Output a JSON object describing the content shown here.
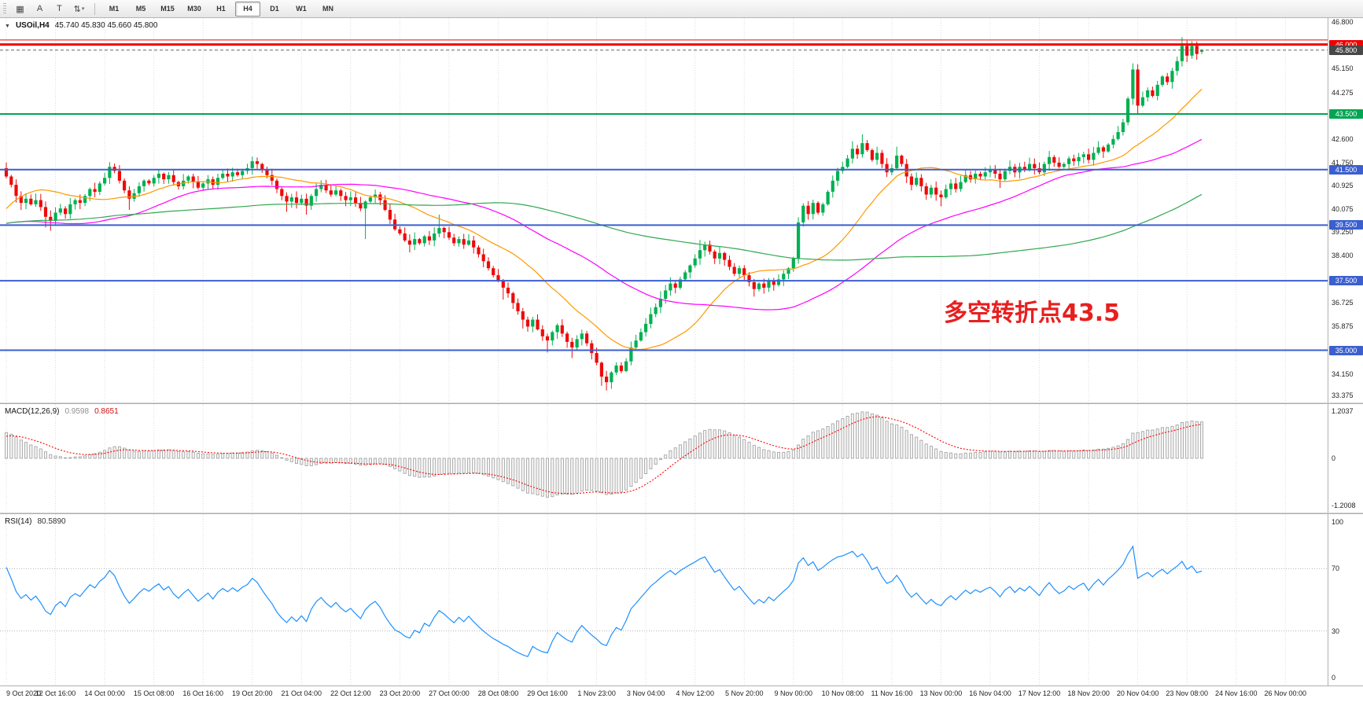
{
  "toolbar": {
    "tools": [
      {
        "name": "chart-grid-icon",
        "glyph": "▦"
      },
      {
        "name": "cursor-tool-icon",
        "glyph": "A"
      },
      {
        "name": "text-tool-icon",
        "glyph": "T"
      },
      {
        "name": "arrange-tool-icon",
        "glyph": "⇅",
        "caret": true
      }
    ],
    "timeframes": [
      "M1",
      "M5",
      "M15",
      "M30",
      "H1",
      "H4",
      "D1",
      "W1",
      "MN"
    ],
    "active_timeframe": "H4"
  },
  "main": {
    "collapse_icon": "▼",
    "title": "USOil,H4",
    "ohlc": "45.740 45.830 45.660 45.800",
    "annotation": {
      "text": "多空转折点43.5",
      "color": "#e81f1f"
    }
  },
  "macd": {
    "label": "MACD(12,26,9)",
    "value": "0.9598",
    "signal_value": "0.8651",
    "axis": [
      "1.2037",
      "0",
      "-1.2008"
    ],
    "params": {
      "fast": 12,
      "slow": 26,
      "signal": 9
    }
  },
  "rsi": {
    "label": "RSI(14)",
    "value": "80.5890",
    "period": 14,
    "levels": [
      70,
      30
    ],
    "axis": [
      "100",
      "70",
      "30",
      "0"
    ]
  },
  "price_axis": {
    "ticks": [
      46.8,
      45.15,
      44.275,
      42.6,
      41.75,
      40.925,
      40.075,
      39.25,
      38.4,
      36.725,
      35.875,
      34.15,
      33.375
    ]
  },
  "time_axis": {
    "labels": [
      "9 Oct 2020",
      "12 Oct 16:00",
      "14 Oct 00:00",
      "15 Oct 08:00",
      "16 Oct 16:00",
      "19 Oct 20:00",
      "21 Oct 04:00",
      "22 Oct 12:00",
      "23 Oct 20:00",
      "27 Oct 00:00",
      "28 Oct 08:00",
      "29 Oct 16:00",
      "1 Nov 23:00",
      "3 Nov 04:00",
      "4 Nov 12:00",
      "5 Nov 20:00",
      "9 Nov 00:00",
      "10 Nov 08:00",
      "11 Nov 16:00",
      "13 Nov 00:00",
      "16 Nov 04:00",
      "17 Nov 12:00",
      "18 Nov 20:00",
      "20 Nov 04:00",
      "23 Nov 08:00",
      "24 Nov 16:00",
      "26 Nov 00:00"
    ]
  },
  "colors": {
    "bull": "#00b050",
    "bear": "#ee0a0a",
    "ma_fast": "#ff9800",
    "ma_mid": "#ff00ff",
    "ma_slow": "#31a74f",
    "macd_hist_fill": "#f4f4f4",
    "macd_hist_stroke": "#9c9c9c",
    "macd_signal": "#ff0000",
    "rsi": "#1e90ff",
    "grid": "#dcdcdc",
    "bid_line": "#666666"
  },
  "chart_data": {
    "type": "candlestick",
    "symbol": "USOil",
    "timeframe": "H4",
    "last_ohlc": {
      "open": 45.74,
      "high": 45.83,
      "low": 45.66,
      "close": 45.8
    },
    "price_range": [
      33.12,
      46.95
    ],
    "grid_step_bars": 10,
    "first_open": 41.55,
    "pre_closes": [
      40.5,
      40.6,
      40.7,
      40.6,
      40.5,
      40.4,
      40.6,
      40.7,
      40.5,
      40.4,
      40.2,
      40.0,
      39.8,
      39.6,
      39.4,
      39.2,
      39.4,
      39.6,
      39.3,
      39.0,
      38.6,
      38.2,
      37.8,
      37.5,
      37.2,
      37.0,
      37.2,
      37.4,
      37.1,
      36.9,
      37.2,
      37.6,
      38.0,
      38.4,
      38.8,
      39.2,
      39.6,
      40.0,
      40.3,
      40.6,
      40.9,
      41.1,
      41.0,
      40.9,
      41.0,
      41.1,
      41.2,
      41.3,
      41.2,
      41.3
    ],
    "closes": [
      41.25,
      40.95,
      40.55,
      40.3,
      40.45,
      40.25,
      40.4,
      40.15,
      39.8,
      39.65,
      39.95,
      40.1,
      39.9,
      40.25,
      40.4,
      40.3,
      40.55,
      40.8,
      40.7,
      41.0,
      41.2,
      41.6,
      41.45,
      41.1,
      40.75,
      40.45,
      40.65,
      40.9,
      41.1,
      41.0,
      41.2,
      41.35,
      41.15,
      41.3,
      41.05,
      40.9,
      41.1,
      41.25,
      41.05,
      40.85,
      41.0,
      41.15,
      40.95,
      41.2,
      41.35,
      41.25,
      41.4,
      41.3,
      41.45,
      41.55,
      41.8,
      41.7,
      41.5,
      41.3,
      41.1,
      40.8,
      40.55,
      40.35,
      40.5,
      40.3,
      40.45,
      40.2,
      40.55,
      40.8,
      40.95,
      40.75,
      40.6,
      40.75,
      40.55,
      40.4,
      40.5,
      40.3,
      40.1,
      40.35,
      40.5,
      40.6,
      40.4,
      40.05,
      39.7,
      39.35,
      39.2,
      38.95,
      38.8,
      39.0,
      38.85,
      39.1,
      38.95,
      39.2,
      39.4,
      39.25,
      39.05,
      38.85,
      39.0,
      38.8,
      38.95,
      38.7,
      38.45,
      38.2,
      37.95,
      37.7,
      37.5,
      37.25,
      37.05,
      36.7,
      36.4,
      36.1,
      35.85,
      36.1,
      35.75,
      35.5,
      35.35,
      35.65,
      35.9,
      35.6,
      35.3,
      35.1,
      35.4,
      35.6,
      35.25,
      34.9,
      34.55,
      34.05,
      33.85,
      34.2,
      34.45,
      34.25,
      34.6,
      35.1,
      35.35,
      35.65,
      35.95,
      36.3,
      36.55,
      36.85,
      37.15,
      37.4,
      37.25,
      37.55,
      37.8,
      38.05,
      38.3,
      38.6,
      38.8,
      38.55,
      38.3,
      38.5,
      38.25,
      38.0,
      37.75,
      37.95,
      37.7,
      37.45,
      37.2,
      37.4,
      37.25,
      37.5,
      37.35,
      37.55,
      37.75,
      37.95,
      38.3,
      39.6,
      40.2,
      39.9,
      40.3,
      39.95,
      40.25,
      40.7,
      41.1,
      41.45,
      41.6,
      41.9,
      42.25,
      42.05,
      42.45,
      42.2,
      41.85,
      42.1,
      41.7,
      41.4,
      41.55,
      42.0,
      41.7,
      41.25,
      40.95,
      41.2,
      40.9,
      40.6,
      40.85,
      40.6,
      40.5,
      40.8,
      41.0,
      40.8,
      41.05,
      41.3,
      41.15,
      41.35,
      41.25,
      41.4,
      41.5,
      41.35,
      41.15,
      41.45,
      41.6,
      41.4,
      41.6,
      41.5,
      41.7,
      41.55,
      41.4,
      41.7,
      41.95,
      41.75,
      41.6,
      41.7,
      41.9,
      41.8,
      41.95,
      42.05,
      41.85,
      42.1,
      42.3,
      42.15,
      42.4,
      42.6,
      42.85,
      43.2,
      44.05,
      45.1,
      43.8,
      44.1,
      44.35,
      44.15,
      44.55,
      44.85,
      44.65,
      45.05,
      45.4,
      45.95,
      45.6,
      45.95,
      45.66,
      45.8
    ],
    "overrides": {
      "3": {
        "low": 40.05
      },
      "8": {
        "low": 39.42
      },
      "9": {
        "low": 39.3
      },
      "21": {
        "high": 41.77
      },
      "25": {
        "low": 40.05
      },
      "50": {
        "high": 41.97
      },
      "57": {
        "low": 39.98
      },
      "61": {
        "low": 39.88
      },
      "73": {
        "low": 39.0
      },
      "82": {
        "low": 38.52
      },
      "88": {
        "high": 39.88
      },
      "101": {
        "low": 36.82
      },
      "105": {
        "low": 35.78
      },
      "110": {
        "low": 34.92
      },
      "115": {
        "low": 34.72
      },
      "121": {
        "low": 33.72
      },
      "122": {
        "low": 33.55
      },
      "133": {
        "high": 37.12
      },
      "141": {
        "high": 38.97
      },
      "152": {
        "low": 36.93
      },
      "172": {
        "high": 42.52
      },
      "174": {
        "high": 42.77
      },
      "181": {
        "high": 42.32
      },
      "190": {
        "low": 40.18
      },
      "202": {
        "low": 40.84
      },
      "212": {
        "high": 42.17
      },
      "222": {
        "high": 42.52
      },
      "229": {
        "high": 45.32
      },
      "230": {
        "low": 43.53
      },
      "239": {
        "high": 46.26
      },
      "241": {
        "high": 46.12
      },
      "243": {
        "open": 45.74,
        "high": 45.83,
        "low": 45.66,
        "close": 45.8
      }
    },
    "hlines": [
      {
        "price": 46.16,
        "color": "#ef0000",
        "width": 1,
        "label": null
      },
      {
        "price": 46.0,
        "color": "#ef0000",
        "width": 3,
        "label": "46.000"
      },
      {
        "price": 43.5,
        "color": "#00a651",
        "width": 2,
        "label": "43.500"
      },
      {
        "price": 41.5,
        "color": "#3b5fd0",
        "width": 2,
        "label": "41.500"
      },
      {
        "price": 39.5,
        "color": "#3b5fd0",
        "width": 2,
        "label": "39.500"
      },
      {
        "price": 37.5,
        "color": "#3b5fd0",
        "width": 2,
        "label": "37.500"
      },
      {
        "price": 35.0,
        "color": "#3b5fd0",
        "width": 2,
        "label": "35.000"
      }
    ],
    "price_marker": {
      "price": 45.8,
      "label": "45.800",
      "bg": "#474747"
    },
    "moving_averages": [
      {
        "name": "MA-fast",
        "period": 21,
        "color": "#ff9800"
      },
      {
        "name": "MA-mid",
        "period": 55,
        "color": "#ff00ff"
      },
      {
        "name": "MA-slow",
        "period": 120,
        "color": "#31a74f"
      }
    ]
  }
}
